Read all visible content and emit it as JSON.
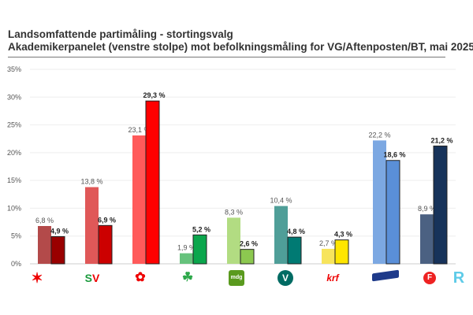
{
  "title": "Landsomfattende partimåling - stortingsvalg",
  "subtitle": "Akademikerpanelet (venstre stolpe) mot befolkningsmåling for VG/Aftenposten/BT, mai 2025",
  "chart_data": {
    "type": "bar",
    "title": "Landsomfattende partimåling - stortingsvalg",
    "subtitle": "Akademikerpanelet (venstre stolpe) mot befolkningsmåling for VG/Aftenposten/BT, mai 2025",
    "categories": [
      "Rødt",
      "SV",
      "Ap",
      "Sp",
      "MDG",
      "Venstre",
      "KrF",
      "Høyre",
      "FrP"
    ],
    "category_icons": [
      "rodt-logo-icon",
      "sv-logo-icon",
      "ap-rose-logo-icon",
      "sp-clover-logo-icon",
      "mdg-logo-icon",
      "venstre-logo-icon",
      "krf-logo-icon",
      "hoyre-logo-icon",
      "frp-logo-icon"
    ],
    "extra_icon": "r-logo-icon",
    "series": [
      {
        "values": [
          6.8,
          13.8,
          23.1,
          1.9,
          8.3,
          10.4,
          2.7,
          22.2,
          8.9
        ],
        "labels": [
          "6,8 %",
          "13,8 %",
          "23,1 %",
          "1,9 %",
          "8,3 %",
          "10,4 %",
          "2,7 %",
          "22,2 %",
          "8,9 %"
        ],
        "colors": [
          "#b34a4a",
          "#e05858",
          "#ff5a5a",
          "#66c27c",
          "#b2dc82",
          "#4f9e98",
          "#f7e45c",
          "#7ca8e2",
          "#4b6182"
        ]
      },
      {
        "values": [
          4.9,
          6.9,
          29.3,
          5.2,
          2.6,
          4.8,
          4.3,
          18.6,
          21.2
        ],
        "labels": [
          "4,9 %",
          "6,9 %",
          "29,3 %",
          "5,2 %",
          "2,6 %",
          "4,8 %",
          "4,3 %",
          "18,6 %",
          "21,2 %"
        ],
        "colors": [
          "#990000",
          "#cc0000",
          "#ff0000",
          "#0aa64c",
          "#8cc850",
          "#007a73",
          "#ffe600",
          "#5a8fd8",
          "#17335a"
        ]
      }
    ],
    "yticks": [
      "0%",
      "5%",
      "10%",
      "15%",
      "20%",
      "25%",
      "30%",
      "35%"
    ],
    "ylim": [
      0,
      35
    ],
    "grid": true,
    "legend": "none"
  }
}
